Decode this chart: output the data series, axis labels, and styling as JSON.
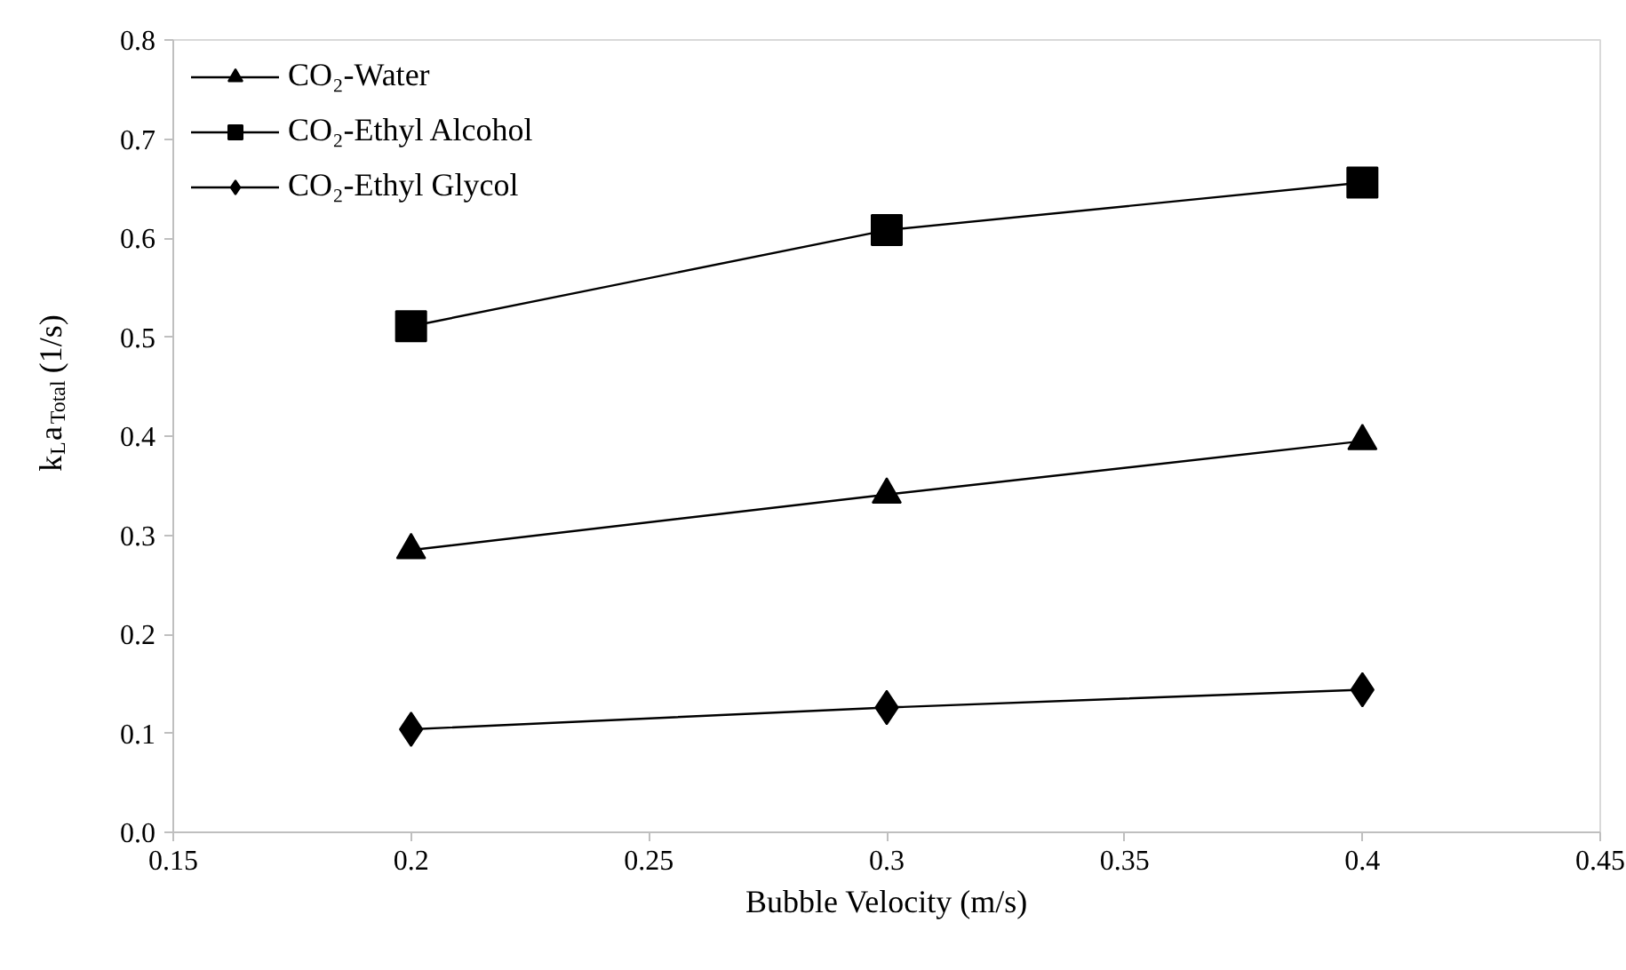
{
  "chart_data": {
    "type": "line",
    "xlabel": "Bubble Velocity (m/s)",
    "ylabel": "k$_{L}$a$_{Total}$ (1/s)",
    "x": [
      0.2,
      0.3,
      0.4
    ],
    "series": [
      {
        "name": "CO₂-Water",
        "color": "#000000",
        "marker": "triangle",
        "values": [
          0.285,
          0.341,
          0.395
        ]
      },
      {
        "name": "CO₂-Ethyl Alcohol",
        "color": "#000000",
        "marker": "square",
        "values": [
          0.511,
          0.608,
          0.656
        ]
      },
      {
        "name": "CO₂-Ethyl Glycol",
        "color": "#000000",
        "marker": "diamond",
        "values": [
          0.104,
          0.126,
          0.144
        ]
      }
    ],
    "xlim": [
      0.15,
      0.45
    ],
    "xticks": [
      0.15,
      0.2,
      0.25,
      0.3,
      0.35,
      0.4,
      0.45
    ],
    "ylim": [
      0.0,
      0.8
    ],
    "yticks": [
      {
        "value": 0,
        "label": "0.0"
      },
      0.1,
      0.2,
      0.3,
      0.4,
      0.5,
      0.6,
      0.7,
      0.8
    ],
    "grid": false,
    "legend": "top left",
    "line_style": "solid"
  }
}
